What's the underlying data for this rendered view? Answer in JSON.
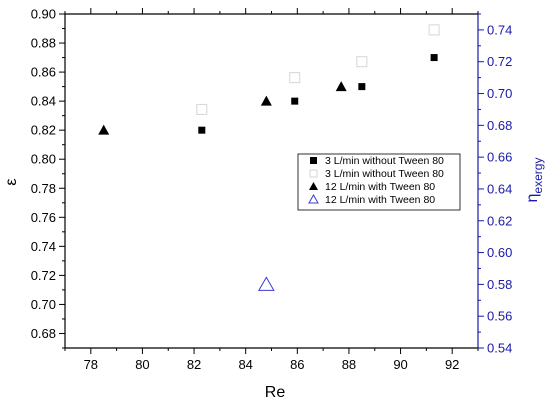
{
  "chart_data": {
    "type": "scatter",
    "xlabel": "Re",
    "ylabel": "ε",
    "y2label_main": "η",
    "y2label_sub": "exergy",
    "xlim": [
      77,
      93
    ],
    "ylim": [
      0.67,
      0.9
    ],
    "y2lim": [
      0.54,
      0.75
    ],
    "x_ticks": [
      "78",
      "80",
      "82",
      "84",
      "86",
      "88",
      "90",
      "92"
    ],
    "y_ticks": [
      "0.68",
      "0.70",
      "0.72",
      "0.74",
      "0.76",
      "0.78",
      "0.80",
      "0.82",
      "0.84",
      "0.86",
      "0.88",
      "0.90"
    ],
    "y2_ticks": [
      "0.54",
      "0.56",
      "0.58",
      "0.60",
      "0.62",
      "0.64",
      "0.66",
      "0.68",
      "0.70",
      "0.72",
      "0.74"
    ],
    "series": [
      {
        "name": "3 L/min without Tween 80",
        "axis": "left",
        "marker": "square-filled",
        "color": "#000000",
        "points": [
          [
            82.3,
            0.82
          ],
          [
            85.9,
            0.84
          ],
          [
            88.5,
            0.85
          ],
          [
            91.3,
            0.87
          ]
        ]
      },
      {
        "name": "3 L/min without Tween 80",
        "axis": "right",
        "marker": "square-open",
        "color": "#d6d6d6",
        "points": [
          [
            82.3,
            0.69
          ],
          [
            85.9,
            0.71
          ],
          [
            88.5,
            0.72
          ],
          [
            91.3,
            0.74
          ]
        ]
      },
      {
        "name": "12 L/min with Tween 80",
        "axis": "left",
        "marker": "triangle-filled",
        "color": "#000000",
        "points": [
          [
            78.5,
            0.82
          ],
          [
            84.8,
            0.84
          ],
          [
            87.7,
            0.85
          ]
        ]
      },
      {
        "name": "12 L/min with Tween 80",
        "axis": "right",
        "marker": "triangle-open",
        "color": "#3b3bd6",
        "points": [
          [
            84.8,
            0.58
          ]
        ]
      }
    ],
    "legend_position": "center-right",
    "grid": false
  }
}
